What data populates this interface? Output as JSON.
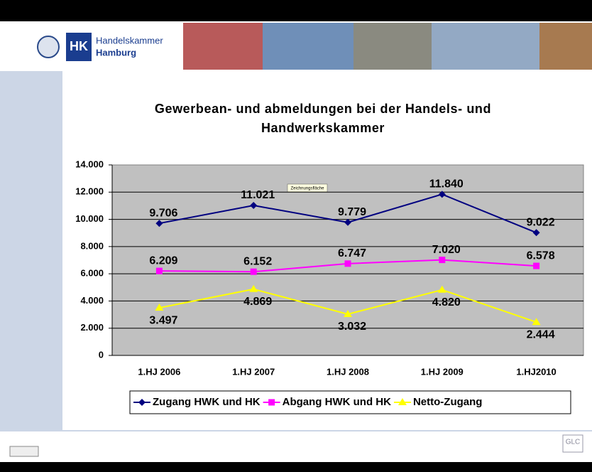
{
  "header": {
    "logo_abbr": "HK",
    "name_line1": "Handelskammer",
    "name_line2": "Hamburg"
  },
  "tooltip": "Zeichnungsfläche",
  "footer": {
    "badge": "GLC"
  },
  "chart_data": {
    "type": "line",
    "title": "Gewerbean- und abmeldungen bei der Handels- und Handwerkskammer",
    "categories": [
      "1.HJ 2006",
      "1.HJ 2007",
      "1.HJ 2008",
      "1.HJ 2009",
      "1.HJ2010"
    ],
    "series": [
      {
        "name": "Zugang HWK und HK",
        "color": "#000080",
        "marker": "diamond",
        "values": [
          9706,
          11021,
          9779,
          11840,
          9022
        ],
        "value_labels": [
          "9.706",
          "11.021",
          "9.779",
          "11.840",
          "9.022"
        ]
      },
      {
        "name": "Abgang HWK und HK",
        "color": "#ff00ff",
        "marker": "square",
        "values": [
          6209,
          6152,
          6747,
          7020,
          6578
        ],
        "value_labels": [
          "6.209",
          "6.152",
          "6.747",
          "7.020",
          "6.578"
        ]
      },
      {
        "name": "Netto-Zugang",
        "color": "#ffff00",
        "marker": "triangle",
        "values": [
          3497,
          4869,
          3032,
          4820,
          2444
        ],
        "value_labels": [
          "3.497",
          "4.869",
          "3.032",
          "4.820",
          "2.444"
        ]
      }
    ],
    "ylim": [
      0,
      14000
    ],
    "yticks": [
      0,
      {
        "value": 2000,
        "label": "2.000"
      },
      {
        "value": 4000,
        "label": "4.000"
      },
      {
        "value": 6000,
        "label": "6.000"
      },
      {
        "value": 8000,
        "label": "8.000"
      },
      {
        "value": 10000,
        "label": "10.000"
      },
      {
        "value": 12000,
        "label": "12.000"
      },
      {
        "value": 14000,
        "label": "14.000"
      }
    ],
    "grid": true,
    "legend": "bottom"
  }
}
